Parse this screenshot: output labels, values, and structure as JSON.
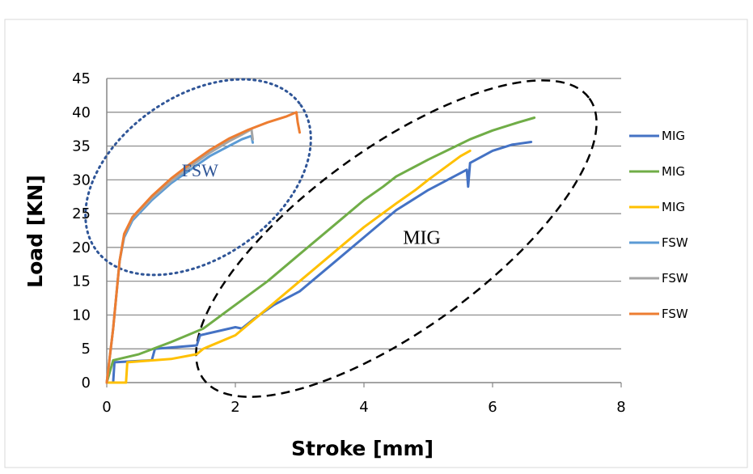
{
  "chart_data": {
    "type": "line",
    "title": "",
    "xlabel": "Stroke [mm]",
    "ylabel": "Load [KN]",
    "xlim": [
      0,
      8
    ],
    "ylim": [
      0,
      45
    ],
    "xticks": [
      0,
      2,
      4,
      6,
      8
    ],
    "yticks": [
      0,
      5,
      10,
      15,
      20,
      25,
      30,
      35,
      40,
      45
    ],
    "grid": "horizontal",
    "legend_position": "right",
    "series": [
      {
        "name": "MIG",
        "color": "#4472C4",
        "points": [
          [
            0,
            0
          ],
          [
            0.1,
            0
          ],
          [
            0.12,
            3
          ],
          [
            0.7,
            3.3
          ],
          [
            0.75,
            5
          ],
          [
            1.4,
            5.5
          ],
          [
            1.45,
            7
          ],
          [
            2.0,
            8.2
          ],
          [
            2.1,
            8
          ],
          [
            2.3,
            9.5
          ],
          [
            2.6,
            11.5
          ],
          [
            3.0,
            13.5
          ],
          [
            3.5,
            17.5
          ],
          [
            4.0,
            21.5
          ],
          [
            4.5,
            25.5
          ],
          [
            5.0,
            28.5
          ],
          [
            5.4,
            30.5
          ],
          [
            5.6,
            31.5
          ],
          [
            5.62,
            29
          ],
          [
            5.65,
            32.5
          ],
          [
            6.0,
            34.3
          ],
          [
            6.3,
            35.2
          ],
          [
            6.6,
            35.6
          ]
        ]
      },
      {
        "name": "MIG",
        "color": "#70AD47",
        "points": [
          [
            0,
            0
          ],
          [
            0.1,
            3.3
          ],
          [
            0.5,
            4.2
          ],
          [
            1.0,
            6
          ],
          [
            1.5,
            8
          ],
          [
            2.0,
            11.5
          ],
          [
            2.5,
            15
          ],
          [
            3.0,
            19
          ],
          [
            3.5,
            23
          ],
          [
            4.0,
            27
          ],
          [
            4.3,
            29
          ],
          [
            4.5,
            30.5
          ],
          [
            5.0,
            33
          ],
          [
            5.5,
            35.3
          ],
          [
            5.65,
            36
          ],
          [
            6.0,
            37.3
          ],
          [
            6.4,
            38.5
          ],
          [
            6.65,
            39.2
          ]
        ]
      },
      {
        "name": "MIG",
        "color": "#FFC000",
        "points": [
          [
            0,
            0
          ],
          [
            0.3,
            0
          ],
          [
            0.32,
            3
          ],
          [
            1.0,
            3.5
          ],
          [
            1.4,
            4.2
          ],
          [
            1.5,
            5
          ],
          [
            2.0,
            7
          ],
          [
            2.5,
            11
          ],
          [
            3.0,
            15
          ],
          [
            3.5,
            19
          ],
          [
            4.0,
            23
          ],
          [
            4.5,
            26.5
          ],
          [
            4.8,
            28.5
          ],
          [
            5.0,
            30
          ],
          [
            5.5,
            33.5
          ],
          [
            5.65,
            34.3
          ]
        ]
      },
      {
        "name": "FSW",
        "color": "#5B9BD5",
        "points": [
          [
            0,
            0
          ],
          [
            0.1,
            8
          ],
          [
            0.2,
            18
          ],
          [
            0.27,
            21.5
          ],
          [
            0.4,
            24
          ],
          [
            0.7,
            27
          ],
          [
            1.0,
            29.5
          ],
          [
            1.3,
            31.5
          ],
          [
            1.6,
            33.5
          ],
          [
            1.9,
            35
          ],
          [
            2.1,
            36
          ],
          [
            2.25,
            36.5
          ],
          [
            2.27,
            35.5
          ]
        ]
      },
      {
        "name": "FSW",
        "color": "#A5A5A5",
        "points": [
          [
            0,
            0
          ],
          [
            0.1,
            8
          ],
          [
            0.2,
            18
          ],
          [
            0.27,
            21.8
          ],
          [
            0.4,
            24.3
          ],
          [
            0.7,
            27.3
          ],
          [
            1.0,
            29.8
          ],
          [
            1.3,
            32
          ],
          [
            1.6,
            34
          ],
          [
            1.9,
            35.7
          ],
          [
            2.1,
            36.7
          ],
          [
            2.25,
            37.5
          ],
          [
            2.27,
            36
          ]
        ]
      },
      {
        "name": "FSW",
        "color": "#ED7D31",
        "points": [
          [
            0,
            0
          ],
          [
            0.1,
            8
          ],
          [
            0.2,
            18
          ],
          [
            0.27,
            22
          ],
          [
            0.4,
            24.5
          ],
          [
            0.7,
            27.6
          ],
          [
            1.0,
            30.2
          ],
          [
            1.3,
            32.4
          ],
          [
            1.6,
            34.4
          ],
          [
            1.9,
            36.1
          ],
          [
            2.2,
            37.4
          ],
          [
            2.5,
            38.5
          ],
          [
            2.8,
            39.4
          ],
          [
            2.95,
            40
          ],
          [
            2.97,
            38.5
          ],
          [
            3.0,
            37
          ]
        ]
      }
    ],
    "annotations": [
      {
        "text": "FSW",
        "x": 1.45,
        "y": 30.5
      },
      {
        "text": "MIG",
        "x": 4.9,
        "y": 20.5
      }
    ]
  }
}
